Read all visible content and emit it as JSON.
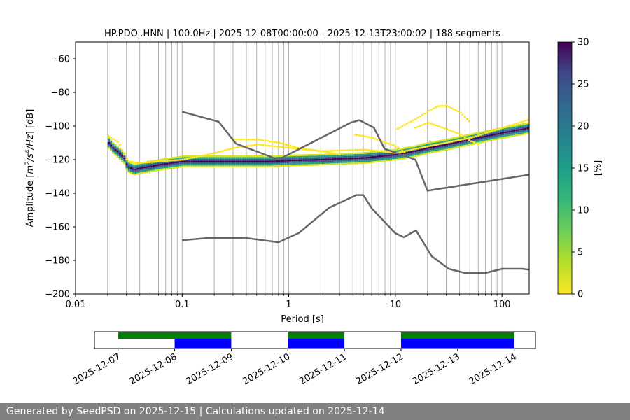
{
  "chart_data": [
    {
      "type": "heatmap",
      "title": "HP.PDO..HNN | 100.0Hz | 2025-12-08T00:00:00 - 2025-12-13T23:00:02 | 188 segments",
      "xlabel": "Period [s]",
      "ylabel_main": "Amplitude [",
      "ylabel_unit_parts": [
        "m",
        "2",
        "/s",
        "4",
        "/Hz",
        "] [dB]"
      ],
      "x_scale": "log",
      "xlim": [
        0.01,
        180
      ],
      "ylim": [
        -200,
        -50
      ],
      "x_ticks": [
        {
          "value": 0.01,
          "label": "0.01"
        },
        {
          "value": 0.1,
          "label": "0.1"
        },
        {
          "value": 1,
          "label": "1"
        },
        {
          "value": 10,
          "label": "10"
        },
        {
          "value": 100,
          "label": "100"
        }
      ],
      "y_ticks": [
        {
          "value": -60,
          "label": "−60"
        },
        {
          "value": -80,
          "label": "−80"
        },
        {
          "value": -100,
          "label": "−100"
        },
        {
          "value": -120,
          "label": "−120"
        },
        {
          "value": -140,
          "label": "−140"
        },
        {
          "value": -160,
          "label": "−160"
        },
        {
          "value": -180,
          "label": "−180"
        },
        {
          "value": -200,
          "label": "−200"
        }
      ],
      "grid": "vertical",
      "colormap": "viridis_r",
      "psd_mode_curve": {
        "period": [
          0.02,
          0.022,
          0.025,
          0.028,
          0.03,
          0.035,
          0.04,
          0.05,
          0.06,
          0.08,
          0.1,
          0.15,
          0.2,
          0.3,
          0.5,
          0.7,
          1,
          2,
          3,
          5,
          7,
          10,
          15,
          20,
          30,
          50,
          70,
          100,
          150,
          180
        ],
        "db": [
          -110,
          -113,
          -116,
          -119,
          -124,
          -126,
          -125,
          -124,
          -123,
          -122,
          -121,
          -121,
          -121,
          -121,
          -121,
          -121,
          -120.5,
          -120,
          -119.5,
          -119,
          -118,
          -117,
          -115,
          -113,
          -111,
          -108,
          -106,
          -104,
          -102,
          -101
        ]
      },
      "psd_spread_bands": [
        {
          "period": [
            0.02,
            0.025,
            0.03,
            0.04,
            0.06,
            0.1,
            0.2,
            0.3,
            0.5,
            1,
            2,
            5,
            10,
            20,
            50,
            100,
            180
          ],
          "db": [
            -106,
            -110,
            -121,
            -122,
            -121,
            -120,
            -116,
            -113,
            -111,
            -113,
            -115,
            -114,
            -116,
            -112,
            -107,
            -101,
            -96
          ]
        },
        {
          "period": [
            0.3,
            0.5,
            0.8,
            1.2,
            2,
            3
          ],
          "db": [
            -108,
            -108,
            -110,
            -113,
            -115,
            -117
          ]
        },
        {
          "period": [
            4,
            6,
            8,
            10,
            12
          ],
          "db": [
            -105,
            -107,
            -110,
            -112,
            -116
          ]
        },
        {
          "period": [
            10,
            15,
            20,
            25,
            30,
            40,
            50
          ],
          "db": [
            -102,
            -96,
            -91,
            -88,
            -88,
            -92,
            -98
          ]
        },
        {
          "period": [
            15,
            20,
            30,
            40,
            50,
            60
          ],
          "db": [
            -101,
            -98,
            -102,
            -105,
            -109,
            -111
          ]
        }
      ],
      "noise_model_high": {
        "period": [
          0.1,
          0.22,
          0.32,
          0.8,
          3.8,
          4.6,
          6.3,
          7.9,
          15.4,
          20,
          354.8
        ],
        "db": [
          -91.5,
          -97.4,
          -110.5,
          -120,
          -98,
          -96.5,
          -101,
          -113.5,
          -120,
          -138.5,
          -126
        ]
      },
      "noise_model_low": {
        "period": [
          0.1,
          0.17,
          0.4,
          0.8,
          1.24,
          2.4,
          4.3,
          5,
          6,
          10,
          12,
          15.6,
          21.9,
          31.6,
          45,
          70,
          101,
          154,
          180
        ],
        "db": [
          -168,
          -166.7,
          -166.7,
          -169.2,
          -163.7,
          -148.6,
          -141.1,
          -141.1,
          -149.0,
          -163.8,
          -166.2,
          -162.1,
          -177.5,
          -185.0,
          -187.5,
          -187.5,
          -185.0,
          -185.0,
          -185.5
        ]
      },
      "colorbar": {
        "label": "[%]",
        "range": [
          0,
          30
        ],
        "ticks": [
          {
            "value": 0,
            "label": "0"
          },
          {
            "value": 5,
            "label": "5"
          },
          {
            "value": 10,
            "label": "10"
          },
          {
            "value": 15,
            "label": "15"
          },
          {
            "value": 20,
            "label": "20"
          },
          {
            "value": 25,
            "label": "25"
          },
          {
            "value": 30,
            "label": "30"
          }
        ]
      }
    },
    {
      "type": "timeline",
      "x_range": [
        "2025-12-06T14:00",
        "2025-12-14T09:00"
      ],
      "x_tick_labels": [
        "2025-12-07",
        "2025-12-08",
        "2025-12-09",
        "2025-12-10",
        "2025-12-11",
        "2025-12-12",
        "2025-12-13",
        "2025-12-14"
      ],
      "bars": [
        {
          "row": "top",
          "color": "#008000",
          "start": "2025-12-07",
          "end": "2025-12-09"
        },
        {
          "row": "top",
          "color": "#008000",
          "start": "2025-12-10",
          "end": "2025-12-11"
        },
        {
          "row": "top",
          "color": "#008000",
          "start": "2025-12-12",
          "end": "2025-12-14"
        },
        {
          "row": "bottom",
          "color": "#0000ff",
          "start": "2025-12-08",
          "end": "2025-12-09"
        },
        {
          "row": "bottom",
          "color": "#0000ff",
          "start": "2025-12-10",
          "end": "2025-12-11"
        },
        {
          "row": "bottom",
          "color": "#0000ff",
          "start": "2025-12-12",
          "end": "2025-12-14"
        }
      ]
    }
  ],
  "footer": {
    "text": "Generated by SeedPSD on 2025-12-15 | Calculations updated on 2025-12-14"
  }
}
